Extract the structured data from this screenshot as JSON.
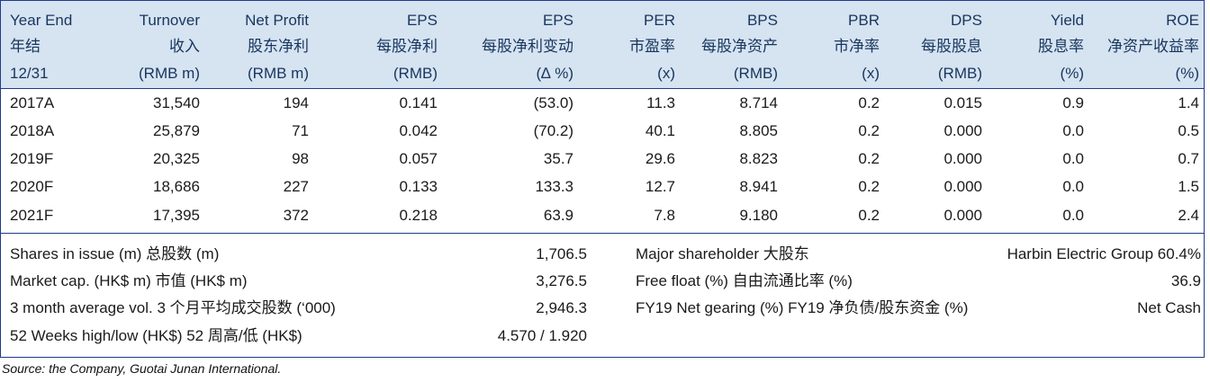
{
  "header": {
    "lines": [
      [
        "Year End",
        "Turnover",
        "Net Profit",
        "EPS",
        "EPS",
        "PER",
        "BPS",
        "PBR",
        "DPS",
        "Yield",
        "ROE"
      ],
      [
        "年结",
        "收入",
        "股东净利",
        "每股净利",
        "每股净利变动",
        "市盈率",
        "每股净资产",
        "市净率",
        "每股股息",
        "股息率",
        "净资产收益率"
      ],
      [
        "12/31",
        "(RMB m)",
        "(RMB m)",
        "(RMB)",
        "(∆ %)",
        "(x)",
        "(RMB)",
        "(x)",
        "(RMB)",
        "(%)",
        "(%)"
      ]
    ]
  },
  "rows": [
    [
      "2017A",
      "31,540",
      "194",
      "0.141",
      "(53.0)",
      "11.3",
      "8.714",
      "0.2",
      "0.015",
      "0.9",
      "1.4"
    ],
    [
      "2018A",
      "25,879",
      "71",
      "0.042",
      "(70.2)",
      "40.1",
      "8.805",
      "0.2",
      "0.000",
      "0.0",
      "0.5"
    ],
    [
      "2019F",
      "20,325",
      "98",
      "0.057",
      "35.7",
      "29.6",
      "8.823",
      "0.2",
      "0.000",
      "0.0",
      "0.7"
    ],
    [
      "2020F",
      "18,686",
      "227",
      "0.133",
      "133.3",
      "12.7",
      "8.941",
      "0.2",
      "0.000",
      "0.0",
      "1.5"
    ],
    [
      "2021F",
      "17,395",
      "372",
      "0.218",
      "63.9",
      "7.8",
      "9.180",
      "0.2",
      "0.000",
      "0.0",
      "2.4"
    ]
  ],
  "stats_left": [
    {
      "label": "Shares in issue (m) 总股数 (m)",
      "value": "1,706.5"
    },
    {
      "label": "Market cap. (HK$ m) 市值 (HK$ m)",
      "value": "3,276.5"
    },
    {
      "label": "3 month average vol. 3 个月平均成交股数 (‘000)",
      "value": "2,946.3"
    },
    {
      "label": "52 Weeks high/low (HK$) 52 周高/低 (HK$)",
      "value": "4.570 / 1.920"
    }
  ],
  "stats_right": [
    {
      "label": "Major shareholder 大股东",
      "value": "Harbin Electric Group 60.4%"
    },
    {
      "label": "Free float (%) 自由流通比率 (%)",
      "value": "36.9"
    },
    {
      "label": "FY19 Net gearing (%) FY19 净负债/股东资金 (%)",
      "value": "Net Cash"
    }
  ],
  "source": "Source: the Company, Guotai Junan International.",
  "colors": {
    "header_bg": "#d6e3f1",
    "rule": "#1f3a8a",
    "header_text": "#17365d"
  }
}
